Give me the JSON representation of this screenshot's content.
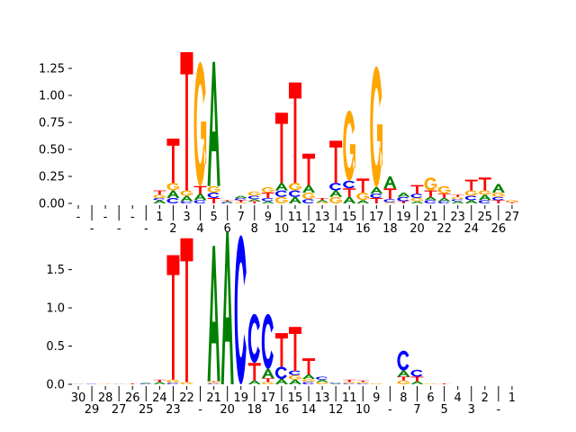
{
  "colors": {
    "A": "#008000",
    "C": "#0000ff",
    "G": "#ffa500",
    "T": "#ff0000"
  },
  "chart_data": [
    {
      "type": "sequence-logo",
      "ylim": [
        0,
        1.4
      ],
      "yticks": [
        "0.00",
        "0.25",
        "0.50",
        "0.75",
        "1.00",
        "1.25"
      ],
      "ytick_values": [
        0,
        0.25,
        0.5,
        0.75,
        1.0,
        1.25
      ],
      "xticklabels": [
        "-",
        "-",
        "-",
        "-",
        "-",
        "-",
        "1",
        "2",
        "3",
        "4",
        "5",
        "6",
        "7",
        "8",
        "9",
        "10",
        "11",
        "12",
        "13",
        "14",
        "15",
        "16",
        "17",
        "18",
        "19",
        "20",
        "21",
        "22",
        "23",
        "24",
        "25",
        "26",
        "27"
      ],
      "stacks": [
        [],
        [],
        [],
        [],
        [],
        [],
        [
          [
            "A",
            0.03
          ],
          [
            "C",
            0.02
          ],
          [
            "G",
            0.03
          ],
          [
            "T",
            0.04
          ]
        ],
        [
          [
            "C",
            0.05
          ],
          [
            "A",
            0.07
          ],
          [
            "G",
            0.07
          ],
          [
            "T",
            0.41
          ]
        ],
        [
          [
            "C",
            0.02
          ],
          [
            "A",
            0.05
          ],
          [
            "G",
            0.05
          ],
          [
            "T",
            1.28
          ]
        ],
        [
          [
            "C",
            0.03
          ],
          [
            "A",
            0.06
          ],
          [
            "T",
            0.07
          ],
          [
            "G",
            1.15
          ]
        ],
        [
          [
            "T",
            0.05
          ],
          [
            "C",
            0.05
          ],
          [
            "G",
            0.06
          ],
          [
            "A",
            1.15
          ]
        ],
        [
          [
            "C",
            0.01
          ],
          [
            "A",
            0.01
          ],
          [
            "T",
            0.01
          ]
        ],
        [
          [
            "G",
            0.01
          ],
          [
            "T",
            0.02
          ],
          [
            "C",
            0.02
          ],
          [
            "A",
            0.02
          ]
        ],
        [
          [
            "T",
            0.02
          ],
          [
            "A",
            0.02
          ],
          [
            "C",
            0.03
          ],
          [
            "G",
            0.04
          ]
        ],
        [
          [
            "A",
            0.02
          ],
          [
            "C",
            0.03
          ],
          [
            "T",
            0.05
          ],
          [
            "G",
            0.05
          ]
        ],
        [
          [
            "G",
            0.06
          ],
          [
            "C",
            0.06
          ],
          [
            "A",
            0.07
          ],
          [
            "T",
            0.65
          ]
        ],
        [
          [
            "A",
            0.06
          ],
          [
            "C",
            0.06
          ],
          [
            "G",
            0.07
          ],
          [
            "T",
            0.93
          ]
        ],
        [
          [
            "C",
            0.04
          ],
          [
            "G",
            0.06
          ],
          [
            "A",
            0.07
          ],
          [
            "T",
            0.29
          ]
        ],
        [
          [
            "G",
            0.01
          ],
          [
            "A",
            0.02
          ],
          [
            "T",
            0.02
          ]
        ],
        [
          [
            "G",
            0.06
          ],
          [
            "A",
            0.06
          ],
          [
            "C",
            0.07
          ],
          [
            "T",
            0.39
          ]
        ],
        [
          [
            "A",
            0.06
          ],
          [
            "T",
            0.08
          ],
          [
            "C",
            0.07
          ],
          [
            "G",
            0.65
          ]
        ],
        [
          [
            "A",
            0.03
          ],
          [
            "G",
            0.07
          ],
          [
            "T",
            0.13
          ]
        ],
        [
          [
            "T",
            0.05
          ],
          [
            "C",
            0.04
          ],
          [
            "A",
            0.06
          ],
          [
            "G",
            1.12
          ]
        ],
        [
          [
            "G",
            0.01
          ],
          [
            "C",
            0.03
          ],
          [
            "T",
            0.1
          ],
          [
            "A",
            0.11
          ]
        ],
        [
          [
            "T",
            0.02
          ],
          [
            "C",
            0.04
          ],
          [
            "A",
            0.04
          ]
        ],
        [
          [
            "A",
            0.02
          ],
          [
            "G",
            0.03
          ],
          [
            "C",
            0.04
          ],
          [
            "T",
            0.08
          ]
        ],
        [
          [
            "C",
            0.03
          ],
          [
            "A",
            0.03
          ],
          [
            "T",
            0.06
          ],
          [
            "G",
            0.12
          ]
        ],
        [
          [
            "C",
            0.02
          ],
          [
            "A",
            0.03
          ],
          [
            "T",
            0.04
          ],
          [
            "G",
            0.07
          ]
        ],
        [
          [
            "A",
            0.02
          ],
          [
            "C",
            0.02
          ],
          [
            "G",
            0.02
          ],
          [
            "T",
            0.02
          ]
        ],
        [
          [
            "A",
            0.03
          ],
          [
            "C",
            0.04
          ],
          [
            "G",
            0.05
          ],
          [
            "T",
            0.1
          ]
        ],
        [
          [
            "C",
            0.03
          ],
          [
            "A",
            0.05
          ],
          [
            "G",
            0.04
          ],
          [
            "T",
            0.12
          ]
        ],
        [
          [
            "T",
            0.03
          ],
          [
            "C",
            0.03
          ],
          [
            "G",
            0.04
          ],
          [
            "A",
            0.08
          ]
        ],
        [
          [
            "T",
            0.01
          ],
          [
            "G",
            0.02
          ]
        ]
      ]
    },
    {
      "type": "sequence-logo",
      "ylim": [
        0,
        1.99
      ],
      "yticks": [
        "0.0",
        "0.5",
        "1.0",
        "1.5"
      ],
      "ytick_values": [
        0,
        0.5,
        1.0,
        1.5
      ],
      "xticklabels": [
        "30",
        "29",
        "28",
        "27",
        "26",
        "25",
        "24",
        "23",
        "22",
        "-",
        "21",
        "20",
        "19",
        "18",
        "17",
        "16",
        "15",
        "14",
        "13",
        "12",
        "11",
        "10",
        "9",
        "-",
        "8",
        "7",
        "6",
        "5",
        "4",
        "3",
        "2",
        "-",
        "1"
      ],
      "stacks": [
        [
          [
            "A",
            0.005
          ]
        ],
        [
          [
            "C",
            0.005
          ]
        ],
        [
          [
            "G",
            0.005
          ]
        ],
        [
          [
            "A",
            0.005
          ]
        ],
        [
          [
            "T",
            0.01
          ]
        ],
        [
          [
            "C",
            0.01
          ],
          [
            "A",
            0.01
          ]
        ],
        [
          [
            "A",
            0.03
          ],
          [
            "T",
            0.03
          ]
        ],
        [
          [
            "C",
            0.02
          ],
          [
            "G",
            0.04
          ],
          [
            "T",
            1.63
          ]
        ],
        [
          [
            "G",
            0.03
          ],
          [
            "T",
            1.88
          ]
        ],
        [],
        [
          [
            "C",
            0.01
          ],
          [
            "G",
            0.02
          ],
          [
            "T",
            0.01
          ],
          [
            "A",
            1.77
          ]
        ],
        [
          [
            "A",
            1.99
          ]
        ],
        [
          [
            "C",
            1.95
          ]
        ],
        [
          [
            "A",
            0.05
          ],
          [
            "T",
            0.23
          ],
          [
            "C",
            0.64
          ]
        ],
        [
          [
            "G",
            0.03
          ],
          [
            "T",
            0.05
          ],
          [
            "A",
            0.12
          ],
          [
            "C",
            0.72
          ]
        ],
        [
          [
            "A",
            0.07
          ],
          [
            "C",
            0.16
          ],
          [
            "T",
            0.44
          ]
        ],
        [
          [
            "A",
            0.06
          ],
          [
            "G",
            0.06
          ],
          [
            "C",
            0.06
          ],
          [
            "T",
            0.57
          ]
        ],
        [
          [
            "C",
            0.03
          ],
          [
            "G",
            0.04
          ],
          [
            "A",
            0.06
          ],
          [
            "T",
            0.21
          ]
        ],
        [
          [
            "G",
            0.03
          ],
          [
            "A",
            0.03
          ],
          [
            "C",
            0.04
          ]
        ],
        [
          [
            "A",
            0.01
          ],
          [
            "C",
            0.01
          ]
        ],
        [
          [
            "C",
            0.01
          ],
          [
            "G",
            0.02
          ],
          [
            "T",
            0.03
          ]
        ],
        [
          [
            "C",
            0.01
          ],
          [
            "G",
            0.02
          ],
          [
            "T",
            0.02
          ]
        ],
        [
          [
            "G",
            0.01
          ]
        ],
        [],
        [
          [
            "G",
            0.05
          ],
          [
            "T",
            0.05
          ],
          [
            "A",
            0.08
          ],
          [
            "C",
            0.26
          ]
        ],
        [
          [
            "A",
            0.04
          ],
          [
            "T",
            0.06
          ],
          [
            "C",
            0.09
          ]
        ],
        [
          [
            "G",
            0.01
          ]
        ],
        [
          [
            "T",
            0.01
          ]
        ],
        [
          [
            "C",
            0.002
          ]
        ],
        [
          [
            "C",
            0.002
          ]
        ],
        [
          [
            "C",
            0.002
          ]
        ],
        [],
        [
          [
            "C",
            0.002
          ]
        ]
      ]
    }
  ]
}
